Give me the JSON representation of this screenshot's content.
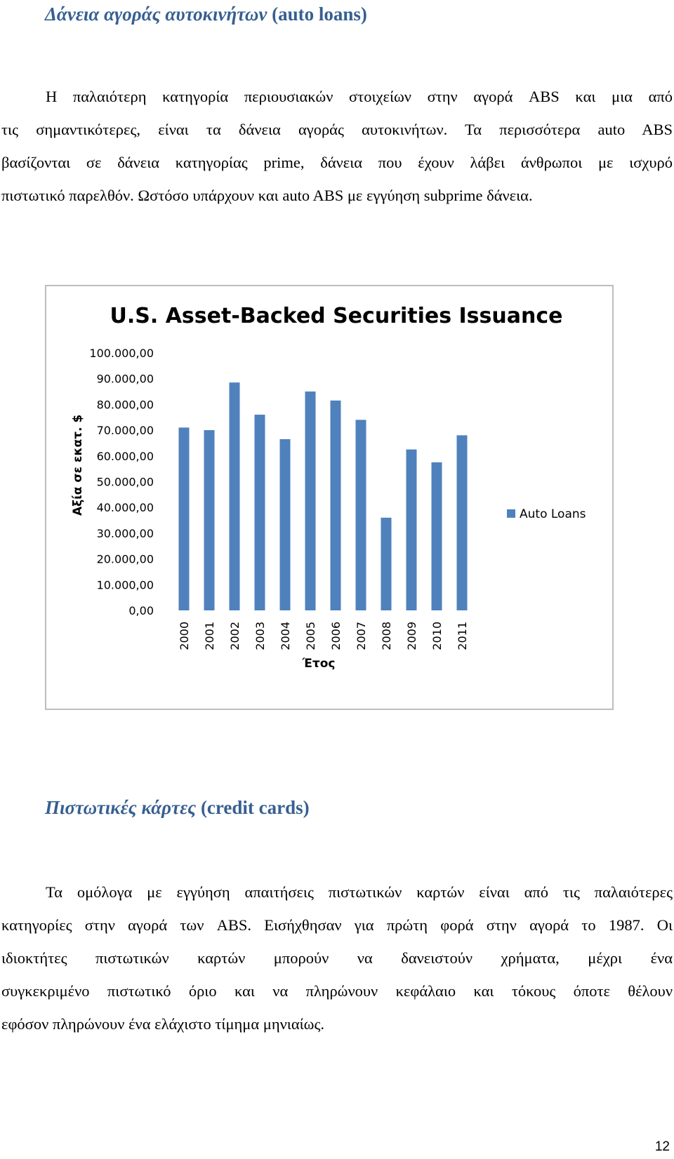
{
  "section1": {
    "heading_greek": "Δάνεια αγοράς αυτοκινήτων",
    "heading_latin": "(auto loans)",
    "paragraph_lines": [
      "Η παλαιότερη κατηγορία περιουσιακών στοιχείων στην αγορά ABS και μια από",
      "τις σημαντικότερες, είναι τα δάνεια αγοράς αυτοκινήτων. Τα περισσότερα auto ABS",
      "βασίζονται σε δάνεια κατηγορίας prime, δάνεια που έχουν λάβει άνθρωποι με ισχυρό",
      "πιστωτικό παρελθόν. Ωστόσο υπάρχουν και auto ABS με εγγύηση subprime δάνεια."
    ]
  },
  "chart_data": {
    "type": "bar",
    "title": "U.S. Asset-Backed Securities Issuance",
    "xlabel": "Έτος",
    "ylabel": "Αξία σε εκατ. $",
    "categories": [
      "2000",
      "2001",
      "2002",
      "2003",
      "2004",
      "2005",
      "2006",
      "2007",
      "2008",
      "2009",
      "2010",
      "2011"
    ],
    "series": [
      {
        "name": "Auto Loans",
        "values": [
          71000,
          70000,
          88500,
          76000,
          66500,
          85000,
          81500,
          74000,
          36000,
          62500,
          57500,
          68000
        ]
      }
    ],
    "ylim": [
      0,
      100000
    ],
    "yticks": [
      0,
      10000,
      20000,
      30000,
      40000,
      50000,
      60000,
      70000,
      80000,
      90000,
      100000
    ],
    "ytick_labels": [
      "0,00",
      "10.000,00",
      "20.000,00",
      "30.000,00",
      "40.000,00",
      "50.000,00",
      "60.000,00",
      "70.000,00",
      "80.000,00",
      "90.000,00",
      "100.000,00"
    ],
    "grid": false,
    "legend": "right",
    "bar_color": "#4f81bd"
  },
  "section2": {
    "heading_greek": "Πιστωτικές κάρτες",
    "heading_latin": "(credit cards)",
    "paragraph_lines": [
      "Τα ομόλογα με εγγύηση απαιτήσεις πιστωτικών καρτών είναι από τις παλαιότερες",
      "κατηγορίες στην αγορά των ABS. Εισήχθησαν για πρώτη φορά στην αγορά το 1987. Οι",
      "ιδιοκτήτες πιστωτικών καρτών μπορούν να δανειστούν χρήματα, μέχρι ένα",
      "συγκεκριμένο πιστωτικό όριο και να πληρώνουν κεφάλαιο και τόκους όποτε θέλουν",
      "εφόσον πληρώνουν ένα ελάχιστο τίμημα μηνιαίως."
    ]
  },
  "page_number": "12"
}
